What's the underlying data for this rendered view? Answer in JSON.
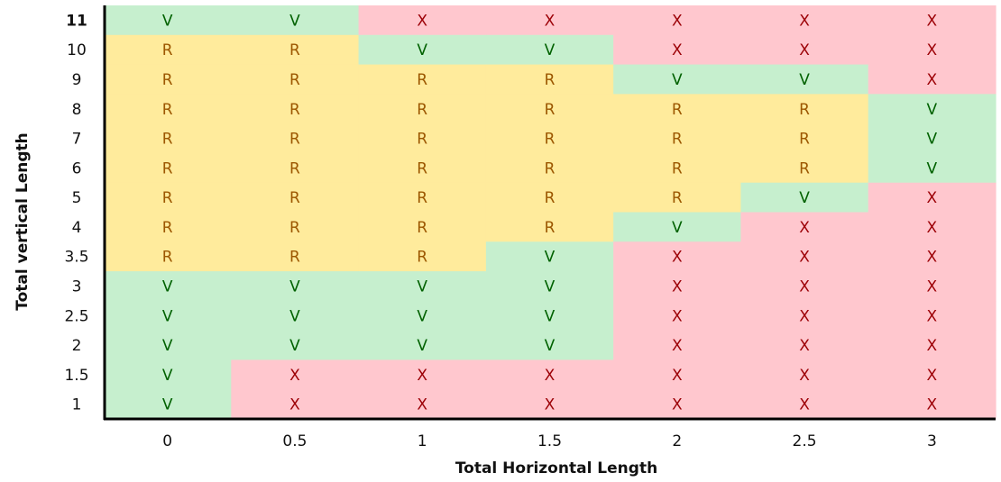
{
  "chart_data": {
    "type": "heatmap",
    "xlabel": "Total Horizontal Length",
    "ylabel": "Total vertical Length",
    "x": [
      "0",
      "0.5",
      "1",
      "1.5",
      "2",
      "2.5",
      "3"
    ],
    "y": [
      "11",
      "10",
      "9",
      "8",
      "7",
      "6",
      "5",
      "4",
      "3.5",
      "3",
      "2.5",
      "2",
      "1.5",
      "1"
    ],
    "bold_y_labels": [
      "11"
    ],
    "values": [
      [
        "V",
        "V",
        "X",
        "X",
        "X",
        "X",
        "X"
      ],
      [
        "R",
        "R",
        "V",
        "V",
        "X",
        "X",
        "X"
      ],
      [
        "R",
        "R",
        "R",
        "R",
        "V",
        "V",
        "X"
      ],
      [
        "R",
        "R",
        "R",
        "R",
        "R",
        "R",
        "V"
      ],
      [
        "R",
        "R",
        "R",
        "R",
        "R",
        "R",
        "V"
      ],
      [
        "R",
        "R",
        "R",
        "R",
        "R",
        "R",
        "V"
      ],
      [
        "R",
        "R",
        "R",
        "R",
        "R",
        "V",
        "X"
      ],
      [
        "R",
        "R",
        "R",
        "R",
        "V",
        "X",
        "X"
      ],
      [
        "R",
        "R",
        "R",
        "V",
        "X",
        "X",
        "X"
      ],
      [
        "V",
        "V",
        "V",
        "V",
        "X",
        "X",
        "X"
      ],
      [
        "V",
        "V",
        "V",
        "V",
        "X",
        "X",
        "X"
      ],
      [
        "V",
        "V",
        "V",
        "V",
        "X",
        "X",
        "X"
      ],
      [
        "V",
        "X",
        "X",
        "X",
        "X",
        "X",
        "X"
      ],
      [
        "V",
        "X",
        "X",
        "X",
        "X",
        "X",
        "X"
      ]
    ],
    "colors": {
      "V": {
        "fill": "#c6efce",
        "text": "#006100"
      },
      "R": {
        "fill": "#ffeb9c",
        "text": "#9c5700"
      },
      "X": {
        "fill": "#ffc7ce",
        "text": "#9c0006"
      }
    },
    "grid": false
  }
}
